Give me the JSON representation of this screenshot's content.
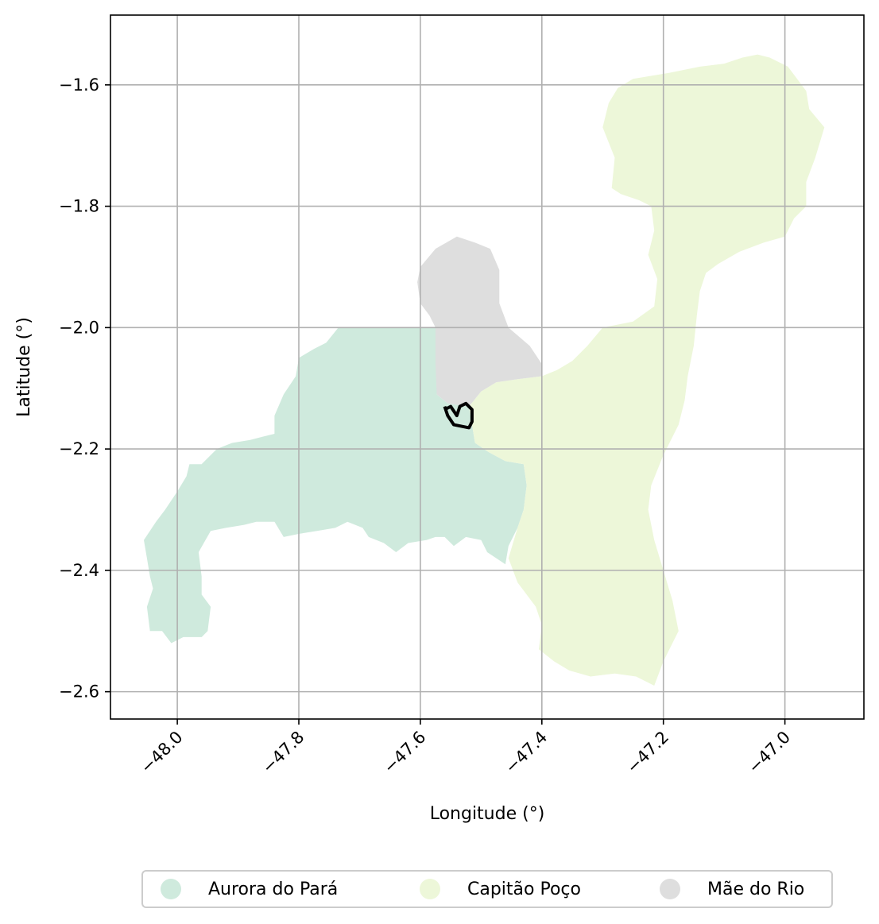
{
  "chart_data": {
    "type": "map",
    "xlabel": "Longitude (°)",
    "ylabel": "Latitude (°)",
    "xlim": [
      -48.11,
      -46.87
    ],
    "ylim": [
      -2.645,
      -1.485
    ],
    "x_ticks": [
      {
        "value": -48.0,
        "label": "−48.0"
      },
      {
        "value": -47.8,
        "label": "−47.8"
      },
      {
        "value": -47.6,
        "label": "−47.6"
      },
      {
        "value": -47.4,
        "label": "−47.4"
      },
      {
        "value": -47.2,
        "label": "−47.2"
      },
      {
        "value": -47.0,
        "label": "−47.0"
      }
    ],
    "y_ticks": [
      {
        "value": -1.6,
        "label": "−1.6"
      },
      {
        "value": -1.8,
        "label": "−1.8"
      },
      {
        "value": -2.0,
        "label": "−2.0"
      },
      {
        "value": -2.2,
        "label": "−2.2"
      },
      {
        "value": -2.4,
        "label": "−2.4"
      },
      {
        "value": -2.6,
        "label": "−2.6"
      }
    ],
    "grid": true,
    "legend_position": "bottom-center",
    "series": [
      {
        "name": "Aurora do Pará",
        "color": "#cfeadd",
        "polygon": [
          [
            -47.735,
            -2.0
          ],
          [
            -47.575,
            -2.0
          ],
          [
            -47.572,
            -2.04
          ],
          [
            -47.573,
            -2.11
          ],
          [
            -47.555,
            -2.125
          ],
          [
            -47.52,
            -2.13
          ],
          [
            -47.515,
            -2.16
          ],
          [
            -47.51,
            -2.19
          ],
          [
            -47.488,
            -2.205
          ],
          [
            -47.46,
            -2.22
          ],
          [
            -47.43,
            -2.225
          ],
          [
            -47.425,
            -2.26
          ],
          [
            -47.43,
            -2.3
          ],
          [
            -47.44,
            -2.33
          ],
          [
            -47.455,
            -2.36
          ],
          [
            -47.46,
            -2.39
          ],
          [
            -47.49,
            -2.37
          ],
          [
            -47.5,
            -2.35
          ],
          [
            -47.525,
            -2.345
          ],
          [
            -47.545,
            -2.36
          ],
          [
            -47.56,
            -2.345
          ],
          [
            -47.575,
            -2.345
          ],
          [
            -47.59,
            -2.35
          ],
          [
            -47.62,
            -2.355
          ],
          [
            -47.64,
            -2.37
          ],
          [
            -47.66,
            -2.355
          ],
          [
            -47.685,
            -2.345
          ],
          [
            -47.695,
            -2.33
          ],
          [
            -47.72,
            -2.32
          ],
          [
            -47.74,
            -2.33
          ],
          [
            -47.77,
            -2.335
          ],
          [
            -47.8,
            -2.34
          ],
          [
            -47.825,
            -2.345
          ],
          [
            -47.84,
            -2.32
          ],
          [
            -47.87,
            -2.32
          ],
          [
            -47.89,
            -2.325
          ],
          [
            -47.92,
            -2.33
          ],
          [
            -47.945,
            -2.335
          ],
          [
            -47.965,
            -2.37
          ],
          [
            -47.96,
            -2.41
          ],
          [
            -47.96,
            -2.44
          ],
          [
            -47.945,
            -2.46
          ],
          [
            -47.95,
            -2.5
          ],
          [
            -47.96,
            -2.51
          ],
          [
            -47.99,
            -2.51
          ],
          [
            -48.01,
            -2.52
          ],
          [
            -48.025,
            -2.5
          ],
          [
            -48.045,
            -2.5
          ],
          [
            -48.05,
            -2.46
          ],
          [
            -48.04,
            -2.43
          ],
          [
            -48.045,
            -2.41
          ],
          [
            -48.05,
            -2.38
          ],
          [
            -48.055,
            -2.35
          ],
          [
            -48.035,
            -2.32
          ],
          [
            -48.02,
            -2.3
          ],
          [
            -48.0,
            -2.27
          ],
          [
            -47.985,
            -2.245
          ],
          [
            -47.98,
            -2.225
          ],
          [
            -47.96,
            -2.225
          ],
          [
            -47.935,
            -2.2
          ],
          [
            -47.91,
            -2.19
          ],
          [
            -47.88,
            -2.185
          ],
          [
            -47.86,
            -2.18
          ],
          [
            -47.84,
            -2.175
          ],
          [
            -47.84,
            -2.145
          ],
          [
            -47.825,
            -2.11
          ],
          [
            -47.805,
            -2.08
          ],
          [
            -47.8,
            -2.05
          ],
          [
            -47.775,
            -2.035
          ],
          [
            -47.755,
            -2.025
          ]
        ]
      },
      {
        "name": "Capitão Poço",
        "color": "#edf7d9",
        "polygon": [
          [
            -47.045,
            -1.55
          ],
          [
            -47.025,
            -1.555
          ],
          [
            -46.995,
            -1.57
          ],
          [
            -46.965,
            -1.61
          ],
          [
            -46.96,
            -1.64
          ],
          [
            -46.935,
            -1.67
          ],
          [
            -46.95,
            -1.72
          ],
          [
            -46.965,
            -1.76
          ],
          [
            -46.965,
            -1.8
          ],
          [
            -46.985,
            -1.82
          ],
          [
            -47.0,
            -1.85
          ],
          [
            -47.035,
            -1.86
          ],
          [
            -47.075,
            -1.875
          ],
          [
            -47.11,
            -1.895
          ],
          [
            -47.13,
            -1.91
          ],
          [
            -47.14,
            -1.94
          ],
          [
            -47.145,
            -1.98
          ],
          [
            -47.15,
            -2.03
          ],
          [
            -47.16,
            -2.08
          ],
          [
            -47.165,
            -2.12
          ],
          [
            -47.175,
            -2.16
          ],
          [
            -47.2,
            -2.21
          ],
          [
            -47.22,
            -2.26
          ],
          [
            -47.225,
            -2.3
          ],
          [
            -47.215,
            -2.35
          ],
          [
            -47.2,
            -2.4
          ],
          [
            -47.185,
            -2.45
          ],
          [
            -47.175,
            -2.5
          ],
          [
            -47.2,
            -2.55
          ],
          [
            -47.215,
            -2.59
          ],
          [
            -47.245,
            -2.575
          ],
          [
            -47.28,
            -2.57
          ],
          [
            -47.32,
            -2.575
          ],
          [
            -47.355,
            -2.565
          ],
          [
            -47.38,
            -2.55
          ],
          [
            -47.405,
            -2.53
          ],
          [
            -47.4,
            -2.49
          ],
          [
            -47.41,
            -2.46
          ],
          [
            -47.44,
            -2.42
          ],
          [
            -47.455,
            -2.38
          ],
          [
            -47.44,
            -2.33
          ],
          [
            -47.43,
            -2.3
          ],
          [
            -47.425,
            -2.26
          ],
          [
            -47.43,
            -2.225
          ],
          [
            -47.46,
            -2.22
          ],
          [
            -47.488,
            -2.205
          ],
          [
            -47.51,
            -2.19
          ],
          [
            -47.515,
            -2.16
          ],
          [
            -47.52,
            -2.13
          ],
          [
            -47.5,
            -2.105
          ],
          [
            -47.475,
            -2.09
          ],
          [
            -47.44,
            -2.085
          ],
          [
            -47.4,
            -2.08
          ],
          [
            -47.375,
            -2.07
          ],
          [
            -47.35,
            -2.055
          ],
          [
            -47.325,
            -2.03
          ],
          [
            -47.3,
            -2.0
          ],
          [
            -47.25,
            -1.99
          ],
          [
            -47.215,
            -1.965
          ],
          [
            -47.21,
            -1.92
          ],
          [
            -47.225,
            -1.88
          ],
          [
            -47.215,
            -1.84
          ],
          [
            -47.22,
            -1.8
          ],
          [
            -47.24,
            -1.79
          ],
          [
            -47.27,
            -1.78
          ],
          [
            -47.285,
            -1.77
          ],
          [
            -47.28,
            -1.72
          ],
          [
            -47.3,
            -1.67
          ],
          [
            -47.29,
            -1.63
          ],
          [
            -47.275,
            -1.605
          ],
          [
            -47.25,
            -1.59
          ],
          [
            -47.19,
            -1.58
          ],
          [
            -47.14,
            -1.57
          ],
          [
            -47.1,
            -1.565
          ],
          [
            -47.07,
            -1.555
          ]
        ]
      },
      {
        "name": "Mãe do Rio",
        "color": "#dedede",
        "polygon": [
          [
            -47.54,
            -1.85
          ],
          [
            -47.51,
            -1.86
          ],
          [
            -47.485,
            -1.87
          ],
          [
            -47.47,
            -1.905
          ],
          [
            -47.47,
            -1.96
          ],
          [
            -47.455,
            -2.0
          ],
          [
            -47.42,
            -2.03
          ],
          [
            -47.4,
            -2.06
          ],
          [
            -47.4,
            -2.08
          ],
          [
            -47.44,
            -2.085
          ],
          [
            -47.475,
            -2.09
          ],
          [
            -47.5,
            -2.105
          ],
          [
            -47.52,
            -2.13
          ],
          [
            -47.555,
            -2.125
          ],
          [
            -47.573,
            -2.11
          ],
          [
            -47.575,
            -2.06
          ],
          [
            -47.575,
            -2.0
          ],
          [
            -47.585,
            -1.98
          ],
          [
            -47.6,
            -1.96
          ],
          [
            -47.605,
            -1.925
          ],
          [
            -47.6,
            -1.9
          ],
          [
            -47.575,
            -1.87
          ]
        ]
      }
    ],
    "overlay": {
      "color": "#000000",
      "polyline": [
        [
          -47.56,
          -2.13
        ],
        [
          -47.555,
          -2.145
        ],
        [
          -47.545,
          -2.16
        ],
        [
          -47.52,
          -2.165
        ],
        [
          -47.515,
          -2.155
        ],
        [
          -47.515,
          -2.135
        ],
        [
          -47.525,
          -2.125
        ],
        [
          -47.535,
          -2.13
        ],
        [
          -47.54,
          -2.145
        ],
        [
          -47.55,
          -2.13
        ],
        [
          -47.56,
          -2.135
        ]
      ]
    }
  }
}
